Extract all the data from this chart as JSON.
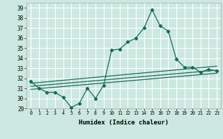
{
  "xlabel": "Humidex (Indice chaleur)",
  "bg_color": "#cce8e0",
  "grid_color": "#ffffff",
  "line_color": "#1a6b5a",
  "xlim": [
    -0.5,
    23.5
  ],
  "ylim": [
    29,
    39.5
  ],
  "yticks": [
    29,
    30,
    31,
    32,
    33,
    34,
    35,
    36,
    37,
    38,
    39
  ],
  "xticks": [
    0,
    1,
    2,
    3,
    4,
    5,
    6,
    7,
    8,
    9,
    10,
    11,
    12,
    13,
    14,
    15,
    16,
    17,
    18,
    19,
    20,
    21,
    22,
    23
  ],
  "series1": [
    31.7,
    31.0,
    30.6,
    30.6,
    30.1,
    29.1,
    29.5,
    31.0,
    30.0,
    31.3,
    34.8,
    34.9,
    35.6,
    36.0,
    37.0,
    38.8,
    37.2,
    36.7,
    33.9,
    33.1,
    33.1,
    32.6,
    32.9,
    32.7
  ],
  "trend1_x": [
    0,
    23
  ],
  "trend1_y": [
    31.5,
    33.2
  ],
  "trend2_x": [
    0,
    23
  ],
  "trend2_y": [
    31.2,
    32.8
  ],
  "trend3_x": [
    0,
    23
  ],
  "trend3_y": [
    30.9,
    32.5
  ]
}
